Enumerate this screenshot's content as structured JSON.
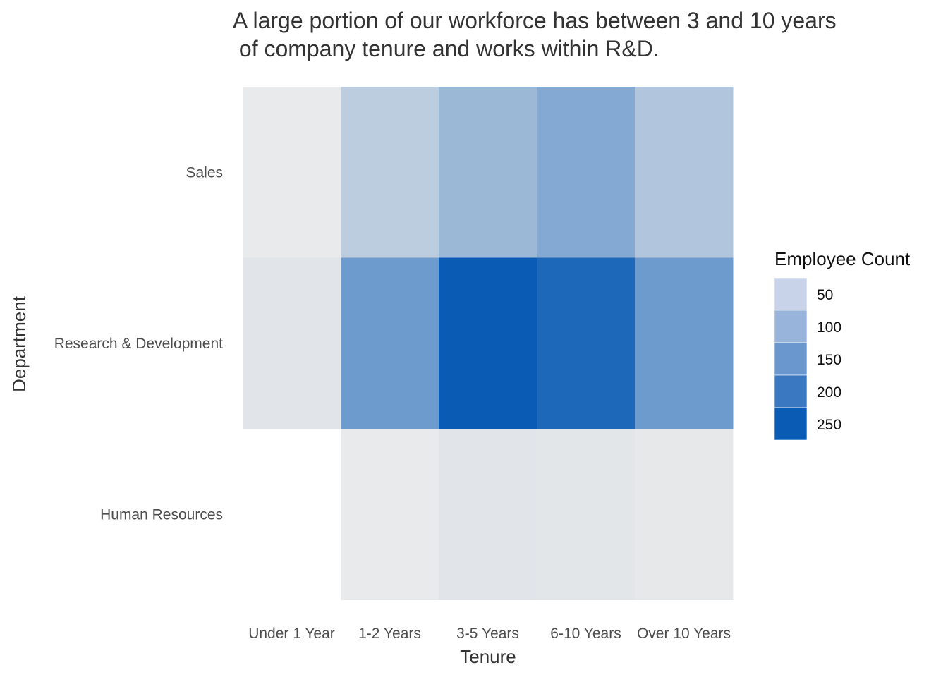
{
  "chart_data": {
    "type": "heatmap",
    "title_lines": [
      "A large portion of our workforce has between 3 and 10 years",
      " of company tenure and works within R&D."
    ],
    "xlabel": "Tenure",
    "ylabel": "Department",
    "x_categories": [
      "Under 1 Year",
      "1-2 Years",
      "3-5 Years",
      "6-10 Years",
      "Over 10 Years"
    ],
    "y_categories": [
      "Sales",
      "Research & Development",
      "Human Resources"
    ],
    "values": [
      [
        2,
        58,
        100,
        128,
        72
      ],
      [
        12,
        155,
        280,
        255,
        155
      ],
      [
        null,
        2,
        12,
        10,
        5
      ]
    ],
    "legend": {
      "title": "Employee Count",
      "breaks": [
        50,
        100,
        150,
        200,
        250
      ],
      "labels": [
        "50",
        "100",
        "150",
        "200",
        "250"
      ]
    },
    "colors": {
      "low": "#ebebeb",
      "high": "#0a5bb4",
      "legend_low": "#c8d2e8"
    }
  }
}
